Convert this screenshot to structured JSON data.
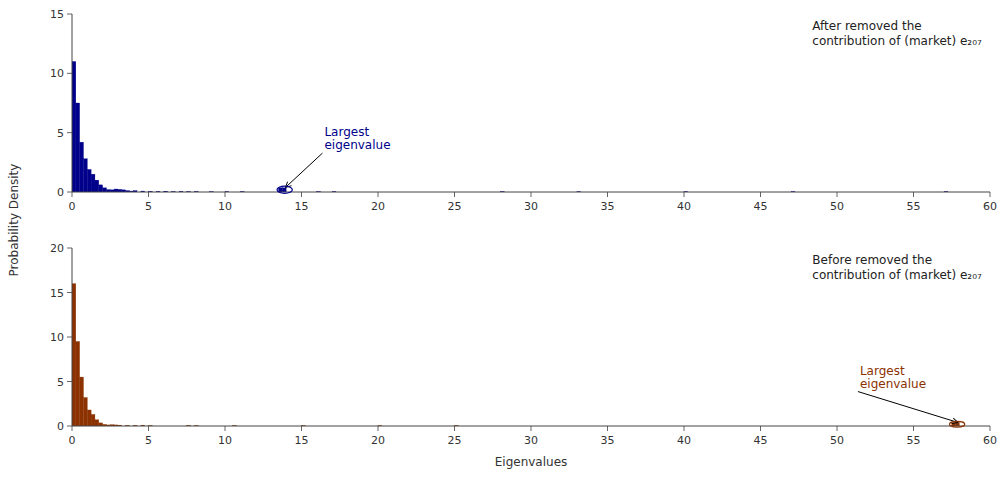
{
  "chart_data": [
    {
      "type": "bar",
      "color": "#00008B",
      "grid": false,
      "ylabel": "Probability Density",
      "xlim": [
        0,
        60
      ],
      "ylim": [
        0,
        15
      ],
      "xticks": [
        0,
        5,
        10,
        15,
        20,
        25,
        30,
        35,
        40,
        45,
        50,
        55,
        60
      ],
      "yticks": [
        0,
        5,
        10,
        15
      ],
      "x": [
        0.0,
        0.25,
        0.5,
        0.75,
        1.0,
        1.25,
        1.5,
        1.75,
        2.0,
        2.25,
        2.5,
        2.75,
        3.0,
        3.25,
        3.5,
        3.75,
        4.0,
        4.5,
        5.0,
        5.5,
        6.0,
        6.5,
        7.0,
        7.5,
        8.0,
        9.0,
        10.0,
        11.0,
        13.5,
        13.75,
        16.0,
        17.0,
        28.0,
        33.0,
        40.0,
        47.0,
        57.0
      ],
      "values": [
        11.0,
        7.5,
        4.2,
        2.8,
        1.9,
        1.5,
        1.0,
        0.6,
        0.35,
        0.2,
        0.18,
        0.25,
        0.22,
        0.18,
        0.12,
        0.08,
        0.12,
        0.08,
        0.06,
        0.05,
        0.07,
        0.04,
        0.06,
        0.04,
        0.05,
        0.03,
        0.04,
        0.04,
        0.35,
        0.35,
        0.04,
        0.04,
        0.04,
        0.04,
        0.04,
        0.04,
        0.04
      ],
      "bar_width": 0.25,
      "annotations": [
        {
          "text": "Largest\neigenvalue",
          "x": 13.95,
          "y": 0.38,
          "text_x": 16.5,
          "text_y": 4.5,
          "ellipse": {
            "x": 13.9,
            "y": 0.19,
            "width": 1.0,
            "height": 0.6
          }
        },
        {
          "text": "After removed the\ncontribution of (market) e₂₀₇"
        }
      ]
    },
    {
      "type": "bar",
      "color": "#8B3200",
      "grid": false,
      "xlabel": "Eigenvalues",
      "xlim": [
        0,
        60
      ],
      "ylim": [
        0,
        20
      ],
      "xticks": [
        0,
        5,
        10,
        15,
        20,
        25,
        30,
        35,
        40,
        45,
        50,
        55,
        60
      ],
      "yticks": [
        0,
        5,
        10,
        15,
        20
      ],
      "x": [
        0.0,
        0.25,
        0.5,
        0.75,
        1.0,
        1.25,
        1.5,
        1.75,
        2.0,
        2.25,
        2.5,
        2.75,
        3.0,
        3.5,
        4.0,
        4.5,
        5.0,
        7.5,
        8.0,
        10.5,
        15.0,
        20.0,
        25.0,
        57.5,
        57.75
      ],
      "values": [
        16.0,
        9.5,
        5.5,
        3.2,
        1.8,
        1.3,
        0.7,
        0.35,
        0.18,
        0.12,
        0.15,
        0.12,
        0.1,
        0.08,
        0.08,
        0.1,
        0.06,
        0.08,
        0.06,
        0.06,
        0.06,
        0.06,
        0.06,
        0.38,
        0.38
      ],
      "bar_width": 0.25,
      "annotations": [
        {
          "text": "Largest\neigenvalue",
          "x": 57.9,
          "y": 0.4,
          "text_x": 51.5,
          "text_y": 5.5,
          "ellipse": {
            "x": 57.85,
            "y": 0.2,
            "width": 1.0,
            "height": 0.65
          }
        },
        {
          "text": "Before removed the\ncontribution of (market) e₂₀₇"
        }
      ]
    }
  ]
}
